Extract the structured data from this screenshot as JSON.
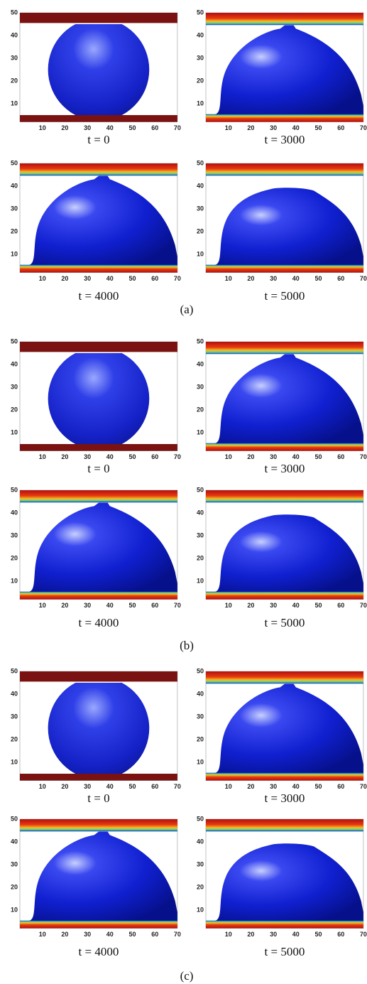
{
  "axes": {
    "xticks": [
      10,
      20,
      30,
      40,
      50,
      60,
      70
    ],
    "yticks": [
      10,
      20,
      30,
      40,
      50
    ]
  },
  "figures": [
    {
      "label": "(a)",
      "panels": [
        {
          "caption": "t = 0"
        },
        {
          "caption": "t = 3000"
        },
        {
          "caption": "t = 4000"
        },
        {
          "caption": "t = 5000"
        }
      ]
    },
    {
      "label": "(b)",
      "panels": [
        {
          "caption": "t = 0"
        },
        {
          "caption": "t = 3000"
        },
        {
          "caption": "t = 4000"
        },
        {
          "caption": "t = 5000"
        }
      ]
    },
    {
      "label": "(c)",
      "panels": [
        {
          "caption": "t = 0"
        },
        {
          "caption": "t = 3000"
        },
        {
          "caption": "t = 4000"
        },
        {
          "caption": "t = 5000"
        }
      ]
    }
  ]
}
